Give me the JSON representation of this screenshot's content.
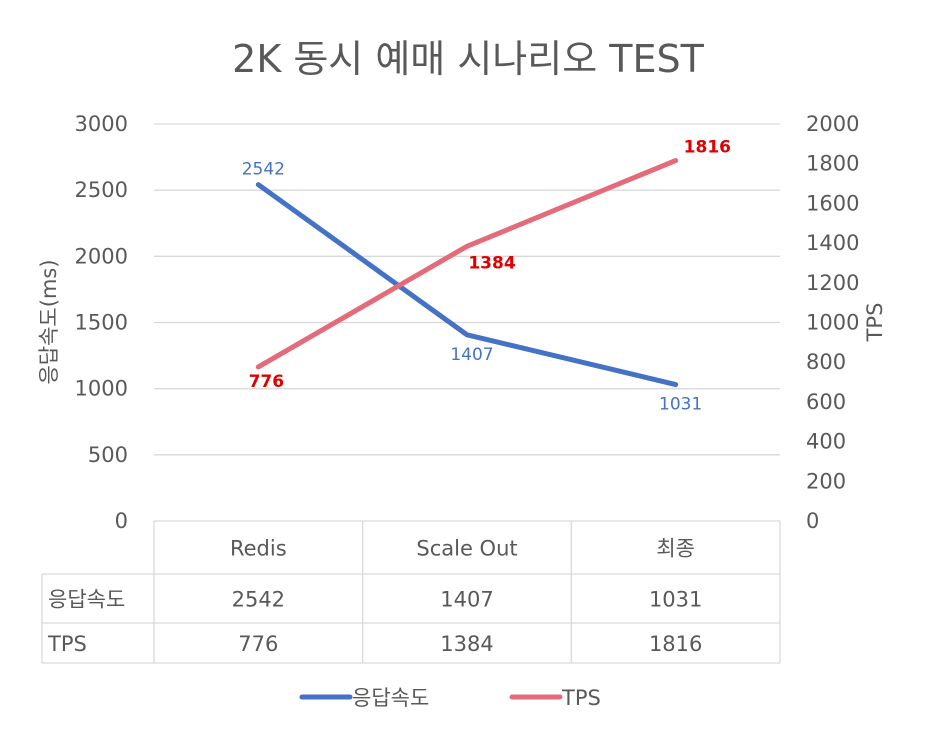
{
  "chart_data": {
    "type": "line",
    "title": "2K 동시 예매 시나리오 TEST",
    "categories": [
      "Redis",
      "Scale Out",
      "최종"
    ],
    "ylabel": "응답속도(ms)",
    "y2label": "TPS",
    "ylim": [
      0,
      3000
    ],
    "y2lim": [
      0,
      2000
    ],
    "yticks": [
      "0",
      "500",
      "1000",
      "1500",
      "2000",
      "2500",
      "3000"
    ],
    "y2ticks": [
      "0",
      "200",
      "400",
      "600",
      "800",
      "1000",
      "1200",
      "1400",
      "1600",
      "1800",
      "2000"
    ],
    "grid": true,
    "legend": "bottom",
    "data_table": true,
    "series": [
      {
        "name": "응답속도",
        "axis": "left",
        "color": "#4472C4",
        "values": [
          2542,
          1407,
          1031
        ],
        "labels": [
          "2542",
          "1407",
          "1031"
        ]
      },
      {
        "name": "TPS",
        "axis": "right",
        "color": "#E46C7A",
        "label_color": "#E00000",
        "values": [
          776,
          1384,
          1816
        ],
        "labels": [
          "776",
          "1384",
          "1816"
        ]
      }
    ]
  }
}
